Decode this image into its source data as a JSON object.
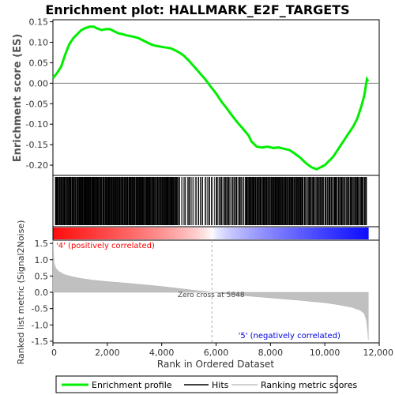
{
  "chart_data": [
    {
      "type": "line",
      "title": "Enrichment plot: HALLMARK_E2F_TARGETS",
      "ylabel": "Enrichment score (ES)",
      "ylim": [
        -0.225,
        0.155
      ],
      "xlim": [
        0,
        12000
      ],
      "yticks": [
        "0.15",
        "0.10",
        "0.05",
        "0.00",
        "-0.05",
        "-0.10",
        "-0.15",
        "-0.20"
      ],
      "ytick_values": [
        0.15,
        0.1,
        0.05,
        0.0,
        -0.05,
        -0.1,
        -0.15,
        -0.2
      ],
      "grid": false,
      "series": [
        {
          "name": "Enrichment profile",
          "color": "#00ee00",
          "x": [
            0,
            150,
            300,
            450,
            600,
            750,
            900,
            1050,
            1200,
            1350,
            1500,
            1650,
            1800,
            1950,
            2100,
            2250,
            2400,
            2550,
            2700,
            2850,
            3000,
            3150,
            3300,
            3450,
            3600,
            3750,
            3900,
            4050,
            4200,
            4350,
            4500,
            4650,
            4800,
            5000,
            5200,
            5400,
            5600,
            5800,
            6000,
            6200,
            6400,
            6600,
            6800,
            7000,
            7200,
            7300,
            7500,
            7700,
            7900,
            8100,
            8300,
            8500,
            8700,
            8900,
            9100,
            9300,
            9500,
            9700,
            9850,
            10000,
            10150,
            10300,
            10450,
            10600,
            10750,
            10900,
            11050,
            11200,
            11350,
            11450,
            11550,
            11600
          ],
          "y": [
            0.012,
            0.025,
            0.04,
            0.07,
            0.095,
            0.11,
            0.12,
            0.13,
            0.135,
            0.138,
            0.138,
            0.133,
            0.13,
            0.132,
            0.132,
            0.127,
            0.122,
            0.12,
            0.117,
            0.115,
            0.113,
            0.11,
            0.105,
            0.1,
            0.095,
            0.092,
            0.09,
            0.088,
            0.087,
            0.085,
            0.08,
            0.075,
            0.068,
            0.055,
            0.04,
            0.025,
            0.01,
            -0.008,
            -0.025,
            -0.045,
            -0.062,
            -0.08,
            -0.097,
            -0.112,
            -0.128,
            -0.142,
            -0.155,
            -0.157,
            -0.155,
            -0.158,
            -0.157,
            -0.16,
            -0.163,
            -0.172,
            -0.182,
            -0.195,
            -0.205,
            -0.21,
            -0.205,
            -0.2,
            -0.19,
            -0.18,
            -0.165,
            -0.15,
            -0.135,
            -0.12,
            -0.105,
            -0.085,
            -0.055,
            -0.03,
            0.01,
            0.005
          ]
        }
      ]
    },
    {
      "type": "hits",
      "legend_name": "Hits",
      "hit_clusters": [
        {
          "from": 80,
          "to": 4600,
          "density": 0.055
        },
        {
          "from": 4600,
          "to": 6100,
          "density": 0.02
        },
        {
          "from": 6100,
          "to": 7100,
          "density": 0.03
        },
        {
          "from": 7100,
          "to": 9200,
          "density": 0.05
        },
        {
          "from": 9200,
          "to": 11550,
          "density": 0.04
        }
      ]
    },
    {
      "type": "area",
      "ylabel": "Ranked list metric (Signal2Noise)",
      "xlabel": "Rank in Ordered Dataset",
      "ylim": [
        -1.55,
        1.6
      ],
      "xlim": [
        0,
        12000
      ],
      "yticks": [
        "1.5",
        "1.0",
        "0.5",
        "0.0",
        "-0.5",
        "-1.0",
        "-1.5"
      ],
      "ytick_values": [
        1.5,
        1.0,
        0.5,
        0.0,
        -0.5,
        -1.0,
        -1.5
      ],
      "xticks": [
        "0",
        "2,000",
        "4,000",
        "6,000",
        "8,000",
        "10,000",
        "12,000"
      ],
      "xtick_values": [
        0,
        2000,
        4000,
        6000,
        8000,
        10000,
        12000
      ],
      "series": [
        {
          "name": "Ranking metric scores",
          "color": "#c0c0c0",
          "x": [
            0,
            40,
            100,
            200,
            400,
            700,
            1000,
            1500,
            2000,
            3000,
            4000,
            5000,
            5848,
            6500,
            7000,
            8000,
            9000,
            10000,
            10500,
            11000,
            11300,
            11450,
            11530,
            11580,
            11600
          ],
          "y": [
            1.6,
            0.9,
            0.75,
            0.65,
            0.55,
            0.48,
            0.43,
            0.37,
            0.33,
            0.26,
            0.18,
            0.08,
            0.0,
            -0.06,
            -0.1,
            -0.17,
            -0.24,
            -0.32,
            -0.38,
            -0.46,
            -0.55,
            -0.65,
            -0.85,
            -1.2,
            -1.45
          ]
        }
      ],
      "annotations": {
        "zero_cross": "Zero cross at 5848",
        "zero_cross_rank": 5848,
        "positive_label": "'4' (positively correlated)",
        "negative_label": "'5' (negatively correlated)"
      }
    }
  ],
  "legend": {
    "items": [
      {
        "label": "Enrichment profile",
        "color": "#00ee00"
      },
      {
        "label": "Hits",
        "color": "#000000"
      },
      {
        "label": "Ranking metric scores",
        "color": "#c0c0c0"
      }
    ]
  },
  "colors": {
    "es_line": "#00ee00",
    "positive": "#ff0000",
    "negative": "#0000ff",
    "positive_label": "#ff0000",
    "negative_label": "#0000dd",
    "metric_fill": "#c0c0c0"
  }
}
